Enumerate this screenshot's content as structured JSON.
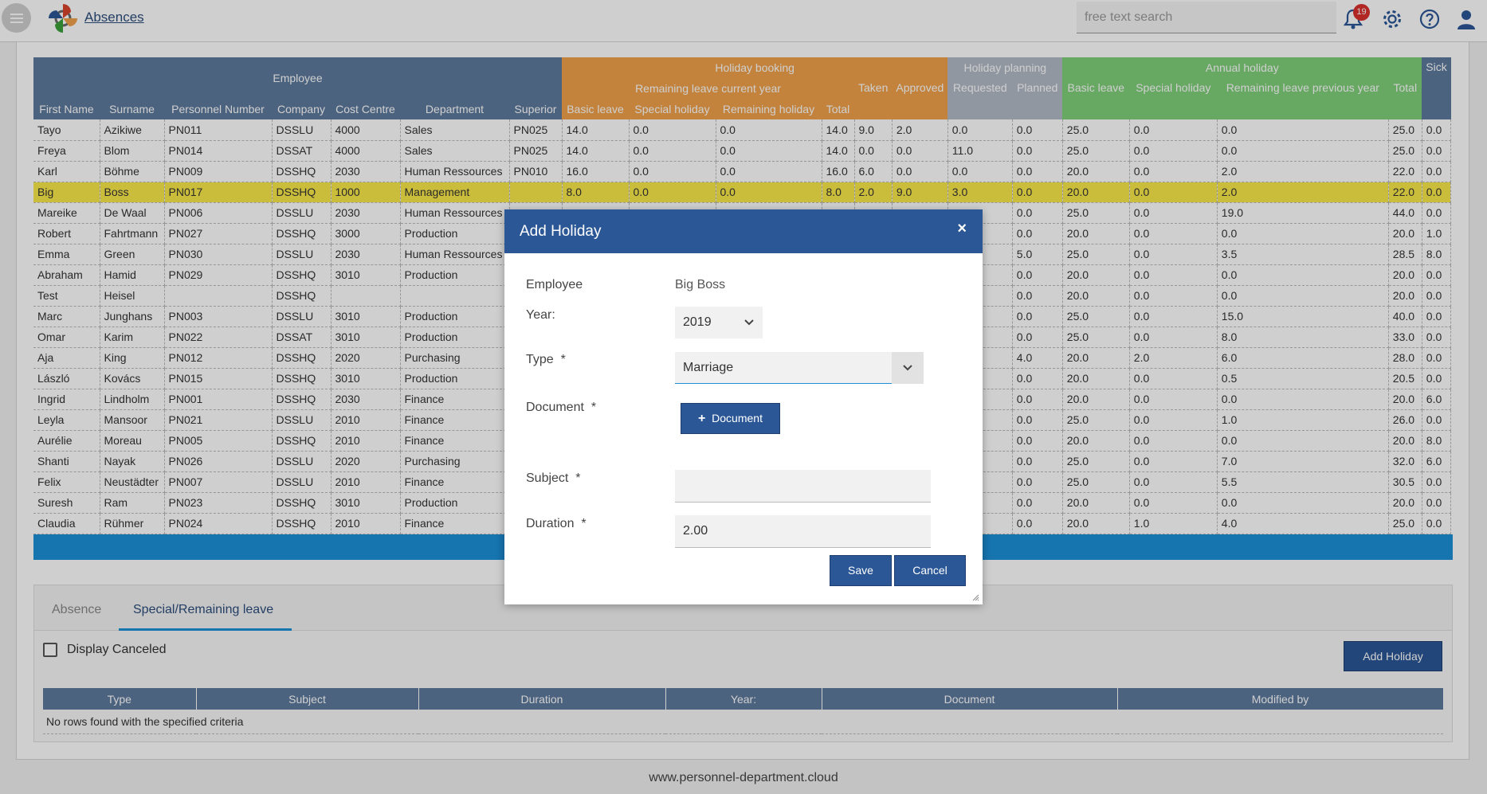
{
  "header": {
    "app_title": "Absences",
    "search_placeholder": "free text search",
    "notification_count": "19"
  },
  "grid": {
    "group_headers": {
      "employee": "Employee",
      "holiday_booking": "Holiday booking",
      "holiday_planning": "Holiday planning",
      "annual_holiday": "Annual holiday",
      "sick": "Sick"
    },
    "sub_group": {
      "remaining_current": "Remaining leave current year",
      "taken": "Taken",
      "approved": "Approved",
      "requested": "Requested",
      "planned": "Planned",
      "basic_leave": "Basic leave",
      "special_holiday": "Special holiday",
      "remaining_previous": "Remaining leave previous year",
      "total": "Total"
    },
    "columns": {
      "first_name": "First Name",
      "surname": "Surname",
      "personnel_number": "Personnel Number",
      "company": "Company",
      "cost_centre": "Cost Centre",
      "department": "Department",
      "superior": "Superior",
      "basic_leave": "Basic leave",
      "special_holiday": "Special holiday",
      "remaining_holiday": "Remaining holiday",
      "total": "Total"
    },
    "rows": [
      [
        "Tayo",
        "Azikiwe",
        "PN011",
        "DSSLU",
        "4000",
        "Sales",
        "PN025",
        "14.0",
        "0.0",
        "0.0",
        "14.0",
        "9.0",
        "2.0",
        "0.0",
        "0.0",
        "25.0",
        "0.0",
        "0.0",
        "25.0",
        "0.0"
      ],
      [
        "Freya",
        "Blom",
        "PN014",
        "DSSAT",
        "4000",
        "Sales",
        "PN025",
        "14.0",
        "0.0",
        "0.0",
        "14.0",
        "0.0",
        "0.0",
        "11.0",
        "0.0",
        "25.0",
        "0.0",
        "0.0",
        "25.0",
        "0.0"
      ],
      [
        "Karl",
        "Böhme",
        "PN009",
        "DSSHQ",
        "2030",
        "Human Ressources",
        "PN010",
        "16.0",
        "0.0",
        "0.0",
        "16.0",
        "6.0",
        "0.0",
        "0.0",
        "0.0",
        "20.0",
        "0.0",
        "2.0",
        "22.0",
        "0.0"
      ],
      [
        "Big",
        "Boss",
        "PN017",
        "DSSHQ",
        "1000",
        "Management",
        "",
        "8.0",
        "0.0",
        "0.0",
        "8.0",
        "2.0",
        "9.0",
        "3.0",
        "0.0",
        "20.0",
        "0.0",
        "2.0",
        "22.0",
        "0.0"
      ],
      [
        "Mareike",
        "De Waal",
        "PN006",
        "DSSLU",
        "2030",
        "Human Ressources",
        "",
        "",
        "",
        "",
        "",
        "",
        "",
        "",
        "0.0",
        "25.0",
        "0.0",
        "19.0",
        "44.0",
        "0.0"
      ],
      [
        "Robert",
        "Fahrtmann",
        "PN027",
        "DSSHQ",
        "3000",
        "Production",
        "",
        "",
        "",
        "",
        "",
        "",
        "",
        "",
        "0.0",
        "20.0",
        "0.0",
        "0.0",
        "20.0",
        "1.0"
      ],
      [
        "Emma",
        "Green",
        "PN030",
        "DSSLU",
        "2030",
        "Human Ressources",
        "",
        "",
        "",
        "",
        "",
        "",
        "",
        "",
        "5.0",
        "25.0",
        "0.0",
        "3.5",
        "28.5",
        "8.0"
      ],
      [
        "Abraham",
        "Hamid",
        "PN029",
        "DSSHQ",
        "3010",
        "Production",
        "",
        "",
        "",
        "",
        "",
        "",
        "",
        "",
        "0.0",
        "20.0",
        "0.0",
        "0.0",
        "20.0",
        "0.0"
      ],
      [
        "Test",
        "Heisel",
        "",
        "DSSHQ",
        "",
        "",
        "",
        "",
        "",
        "",
        "",
        "",
        "",
        "",
        "0.0",
        "20.0",
        "0.0",
        "0.0",
        "20.0",
        "0.0"
      ],
      [
        "Marc",
        "Junghans",
        "PN003",
        "DSSLU",
        "3010",
        "Production",
        "",
        "",
        "",
        "",
        "",
        "",
        "",
        "",
        "0.0",
        "25.0",
        "0.0",
        "15.0",
        "40.0",
        "0.0"
      ],
      [
        "Omar",
        "Karim",
        "PN022",
        "DSSAT",
        "3010",
        "Production",
        "",
        "",
        "",
        "",
        "",
        "",
        "",
        "",
        "0.0",
        "25.0",
        "0.0",
        "8.0",
        "33.0",
        "0.0"
      ],
      [
        "Aja",
        "King",
        "PN012",
        "DSSHQ",
        "2020",
        "Purchasing",
        "",
        "",
        "",
        "",
        "",
        "",
        "",
        "",
        "4.0",
        "20.0",
        "2.0",
        "6.0",
        "28.0",
        "0.0"
      ],
      [
        "László",
        "Kovács",
        "PN015",
        "DSSHQ",
        "3010",
        "Production",
        "",
        "",
        "",
        "",
        "",
        "",
        "",
        "",
        "0.0",
        "20.0",
        "0.0",
        "0.5",
        "20.5",
        "0.0"
      ],
      [
        "Ingrid",
        "Lindholm",
        "PN001",
        "DSSHQ",
        "2030",
        "Finance",
        "",
        "",
        "",
        "",
        "",
        "",
        "",
        "",
        "0.0",
        "20.0",
        "0.0",
        "0.0",
        "20.0",
        "6.0"
      ],
      [
        "Leyla",
        "Mansoor",
        "PN021",
        "DSSLU",
        "2010",
        "Finance",
        "",
        "",
        "",
        "",
        "",
        "",
        "",
        "",
        "0.0",
        "25.0",
        "0.0",
        "1.0",
        "26.0",
        "0.0"
      ],
      [
        "Aurélie",
        "Moreau",
        "PN005",
        "DSSHQ",
        "2010",
        "Finance",
        "",
        "",
        "",
        "",
        "",
        "",
        "",
        "",
        "0.0",
        "20.0",
        "0.0",
        "0.0",
        "20.0",
        "8.0"
      ],
      [
        "Shanti",
        "Nayak",
        "PN026",
        "DSSLU",
        "2020",
        "Purchasing",
        "",
        "",
        "",
        "",
        "",
        "",
        "",
        "",
        "0.0",
        "25.0",
        "0.0",
        "7.0",
        "32.0",
        "6.0"
      ],
      [
        "Felix",
        "Neustädter",
        "PN007",
        "DSSLU",
        "2010",
        "Finance",
        "",
        "",
        "",
        "",
        "",
        "",
        "",
        "",
        "0.0",
        "25.0",
        "0.0",
        "5.5",
        "30.5",
        "0.0"
      ],
      [
        "Suresh",
        "Ram",
        "PN023",
        "DSSHQ",
        "3010",
        "Production",
        "",
        "",
        "",
        "",
        "",
        "",
        "",
        "",
        "0.0",
        "20.0",
        "0.0",
        "0.0",
        "20.0",
        "0.0"
      ],
      [
        "Claudia",
        "Rühmer",
        "PN024",
        "DSSHQ",
        "2010",
        "Finance",
        "",
        "",
        "",
        "",
        "",
        "",
        "",
        "",
        "0.0",
        "20.0",
        "1.0",
        "4.0",
        "25.0",
        "0.0"
      ]
    ],
    "highlight_color": "#fbe94a"
  },
  "bottom": {
    "tab_absence": "Absence",
    "tab_special": "Special/Remaining leave",
    "display_canceled": "Display Canceled",
    "add_holiday": "Add Holiday",
    "table_headers": [
      "Type",
      "Subject",
      "Duration",
      "Year:",
      "Document",
      "Modified by"
    ],
    "empty_message": "No rows found with the specified criteria"
  },
  "dialog": {
    "title": "Add Holiday",
    "close": "×",
    "employee_label": "Employee",
    "employee_value": "Big Boss",
    "year_label": "Year:",
    "year_value": "2019",
    "type_label": "Type",
    "type_value": "Marriage",
    "document_label": "Document",
    "document_button": "Document",
    "subject_label": "Subject",
    "subject_value": "",
    "duration_label": "Duration",
    "duration_value": "2.00",
    "required_mark": "*",
    "save": "Save",
    "cancel": "Cancel"
  },
  "footer": {
    "url": "www.personnel-department.cloud"
  },
  "colors": {
    "accent": "#2b5797",
    "bar": "#1c8fd8",
    "badge": "#d9302c"
  },
  "icons": [
    "menu-icon",
    "logo-icon",
    "bell-icon",
    "gear-icon",
    "help-icon",
    "user-icon",
    "plus-icon",
    "chevron-down-icon"
  ]
}
